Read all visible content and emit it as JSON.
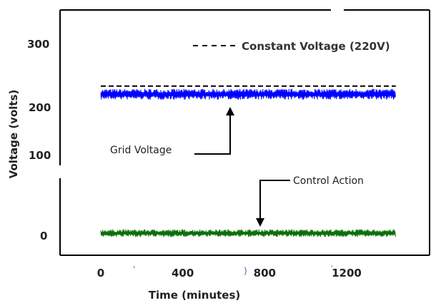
{
  "chart_data": {
    "type": "line",
    "xlabel": "Time (minutes)",
    "ylabel": "Voltage (volts)",
    "xlim": [
      -80,
      1600
    ],
    "y_tick_labels": [
      "300",
      "200",
      "100",
      "0"
    ],
    "x_tick_labels": [
      "0",
      "400",
      "800",
      "1200"
    ],
    "x_ticks": [
      0,
      400,
      800,
      1200
    ],
    "legend": {
      "placement": "top-right",
      "entries": [
        "Constant Voltage (220V)"
      ]
    },
    "series": [
      {
        "name": "Constant Voltage (220V)",
        "style": "dashed",
        "color": "#000000",
        "x": [
          0,
          1440
        ],
        "y": [
          220,
          220
        ]
      },
      {
        "name": "Grid Voltage",
        "style": "noisy",
        "color": "#0000ff",
        "x_range": [
          0,
          1440
        ],
        "mean": 205,
        "spread": 10
      },
      {
        "name": "Control Action",
        "style": "noisy",
        "color": "#0a6e0a",
        "x_range": [
          0,
          1440
        ],
        "mean": 0,
        "spread": 7
      }
    ],
    "annotations": [
      {
        "text": "Grid Voltage",
        "points_to": "Grid Voltage"
      },
      {
        "text": "Control Action",
        "points_to": "Control Action"
      }
    ],
    "grid": false
  }
}
